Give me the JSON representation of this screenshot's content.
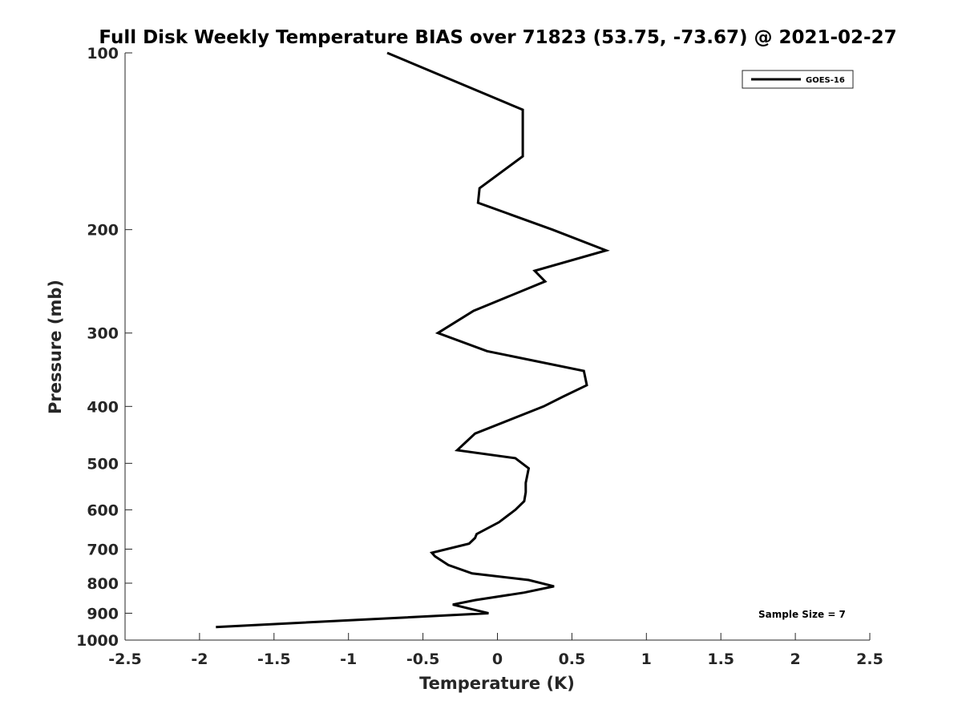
{
  "chart_data": {
    "type": "line",
    "title": "Full Disk Weekly Temperature BIAS over 71823 (53.75, -73.67) @ 2021-02-27",
    "xlabel": "Temperature (K)",
    "ylabel": "Pressure (mb)",
    "xlim": [
      -2.5,
      2.5
    ],
    "ylim": [
      100,
      1000
    ],
    "yscale": "log",
    "y_reversed": true,
    "x_ticks": [
      -2.5,
      -2,
      -1.5,
      -1,
      -0.5,
      0,
      0.5,
      1,
      1.5,
      2,
      2.5
    ],
    "x_tick_labels": [
      "-2.5",
      "-2",
      "-1.5",
      "-1",
      "-0.5",
      "0",
      "0.5",
      "1",
      "1.5",
      "2",
      "2.5"
    ],
    "y_ticks": [
      100,
      200,
      300,
      400,
      500,
      600,
      700,
      800,
      900,
      1000
    ],
    "y_tick_labels": [
      "100",
      "200",
      "300",
      "400",
      "500",
      "600",
      "700",
      "800",
      "900",
      "1000"
    ],
    "grid": false,
    "legend_position": "top-right",
    "series": [
      {
        "name": "GOES-16",
        "color": "#000000",
        "x": [
          -0.74,
          0.17,
          0.17,
          -0.12,
          -0.13,
          0.37,
          0.73,
          0.25,
          0.32,
          -0.16,
          -0.4,
          -0.07,
          0.58,
          0.6,
          0.44,
          0.31,
          -0.15,
          -0.27,
          0.12,
          0.21,
          0.19,
          0.19,
          0.18,
          0.12,
          0.01,
          -0.14,
          -0.15,
          -0.19,
          -0.44,
          -0.42,
          -0.33,
          -0.17,
          0.21,
          0.38,
          0.18,
          -0.15,
          -0.3,
          -0.06,
          -1.89
        ],
        "y": [
          100,
          125,
          150,
          170,
          180,
          200,
          217,
          235,
          245,
          275,
          300,
          322,
          348,
          368,
          385,
          400,
          445,
          475,
          490,
          510,
          540,
          560,
          580,
          600,
          630,
          660,
          670,
          685,
          710,
          720,
          745,
          770,
          790,
          810,
          830,
          855,
          870,
          900,
          950
        ]
      }
    ],
    "annotations": [
      "Sample Size = 7"
    ]
  }
}
